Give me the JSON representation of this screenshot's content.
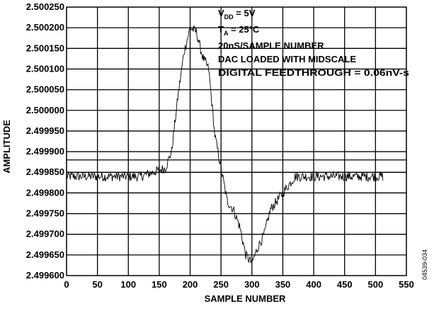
{
  "chart_data": {
    "type": "line",
    "xlabel": "SAMPLE NUMBER",
    "ylabel": "AMPLITUDE",
    "xlim": [
      0,
      550
    ],
    "ylim": [
      2.4996,
      2.50025
    ],
    "x_ticks": [
      0,
      50,
      100,
      150,
      200,
      250,
      300,
      350,
      400,
      450,
      500,
      550
    ],
    "y_ticks": [
      "2.499600",
      "2.499650",
      "2.499700",
      "2.499750",
      "2.499800",
      "2.499850",
      "2.499900",
      "2.499950",
      "2.500000",
      "2.500050",
      "2.500100",
      "2.500150",
      "2.500200",
      "2.500250"
    ],
    "grid": true,
    "annotations": {
      "vdd": {
        "main": "V",
        "sub": "DD",
        "rest": " = 5V"
      },
      "ta": {
        "main": "T",
        "sub": "A",
        "rest": " = 25°C"
      },
      "line3": "20nS/SAMPLE NUMBER",
      "line4": "DAC LOADED WITH MIDSCALE",
      "line5": "DIGITAL FEEDTHROUGH = 0.06nV-s"
    },
    "figure_id": "04539-034",
    "reference_lines": [
      2.49988,
      2.49985,
      2.4998
    ],
    "noise_amplitude": 1.2e-05,
    "series": [
      {
        "x": [
          0,
          20,
          40,
          60,
          80,
          100,
          120,
          140,
          160,
          170,
          180,
          190,
          200,
          210,
          220,
          230,
          240,
          250,
          260,
          270,
          280,
          290,
          300,
          310,
          320,
          330,
          340,
          350,
          360,
          370,
          380,
          400,
          420,
          440,
          460,
          480,
          500,
          512
        ],
        "values": [
          2.49984,
          2.49984,
          2.49984,
          2.49984,
          2.49984,
          2.49984,
          2.49984,
          2.49985,
          2.49986,
          2.4999,
          2.50003,
          2.50014,
          2.5002,
          2.50019,
          2.50013,
          2.5001,
          2.49994,
          2.49986,
          2.49978,
          2.49976,
          2.49972,
          2.49965,
          2.49963,
          2.49967,
          2.4997,
          2.49976,
          2.49978,
          2.4998,
          2.49982,
          2.49984,
          2.49984,
          2.49984,
          2.49984,
          2.49984,
          2.49984,
          2.49984,
          2.49984,
          2.49984
        ]
      }
    ]
  }
}
